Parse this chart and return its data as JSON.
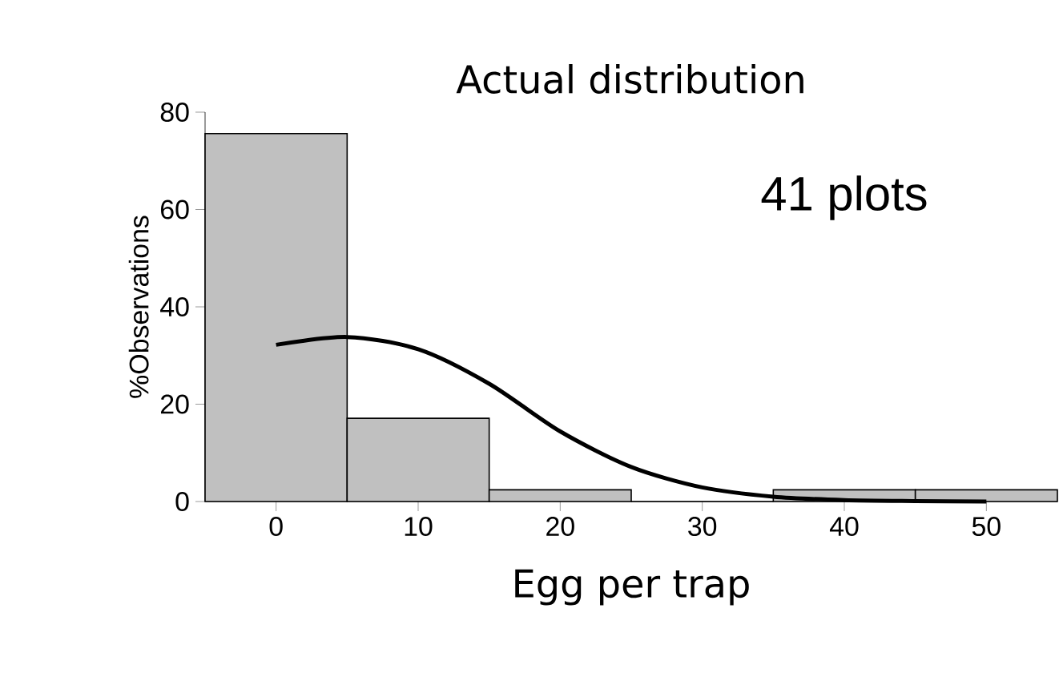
{
  "chart_data": {
    "type": "histogram",
    "title": "Actual distribution",
    "xlabel": "Egg per trap",
    "ylabel": "%Observations",
    "bins": [
      -5,
      5,
      15,
      25,
      35,
      45,
      55
    ],
    "values": [
      75.6,
      17.1,
      2.4,
      0,
      2.4,
      2.4
    ],
    "color": "#c0c0c0",
    "series": [
      {
        "type": "line",
        "color": "#000000",
        "x": [
          0,
          5,
          10,
          15,
          20,
          25,
          30,
          35,
          40,
          45,
          50
        ],
        "values": [
          32.2,
          33.8,
          31.3,
          24.2,
          14.4,
          7.1,
          2.9,
          1.0,
          0.3,
          0.1,
          0
        ]
      }
    ],
    "annotations": [
      "41 plots"
    ],
    "xlim": [
      -5,
      55
    ],
    "ylim": [
      0,
      80
    ],
    "xticks": [
      0,
      10,
      20,
      30,
      40,
      50
    ],
    "yticks": [
      0,
      20,
      40,
      60,
      80
    ],
    "grid": false
  }
}
